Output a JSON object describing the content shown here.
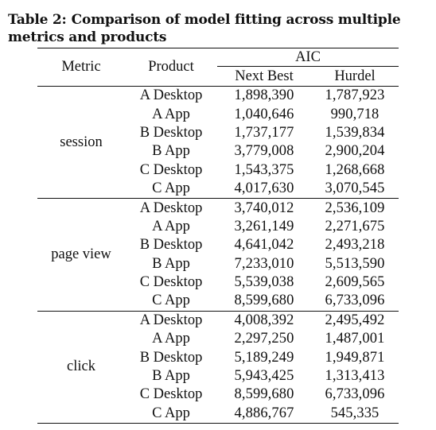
{
  "caption": {
    "label": "Table 2:",
    "text": "Comparison of model fitting across multiple metrics and products"
  },
  "table": {
    "headers": {
      "metric": "Metric",
      "product": "Product",
      "group": "AIC",
      "next_best": "Next Best",
      "hurdel": "Hurdel"
    },
    "groups": [
      {
        "metric": "session",
        "rows": [
          {
            "product": "A Desktop",
            "next_best": "1,898,390",
            "hurdel": "1,787,923"
          },
          {
            "product": "A App",
            "next_best": "1,040,646",
            "hurdel": "990,718"
          },
          {
            "product": "B Desktop",
            "next_best": "1,737,177",
            "hurdel": "1,539,834"
          },
          {
            "product": "B App",
            "next_best": "3,779,008",
            "hurdel": "2,900,204"
          },
          {
            "product": "C Desktop",
            "next_best": "1,543,375",
            "hurdel": "1,268,668"
          },
          {
            "product": "C App",
            "next_best": "4,017,630",
            "hurdel": "3,070,545"
          }
        ]
      },
      {
        "metric": "page view",
        "rows": [
          {
            "product": "A Desktop",
            "next_best": "3,740,012",
            "hurdel": "2,536,109"
          },
          {
            "product": "A App",
            "next_best": "3,261,149",
            "hurdel": "2,271,675"
          },
          {
            "product": "B Desktop",
            "next_best": "4,641,042",
            "hurdel": "2,493,218"
          },
          {
            "product": "B App",
            "next_best": "7,233,010",
            "hurdel": "5,513,590"
          },
          {
            "product": "C Desktop",
            "next_best": "5,539,038",
            "hurdel": "2,609,565"
          },
          {
            "product": "C App",
            "next_best": "8,599,680",
            "hurdel": "6,733,096"
          }
        ]
      },
      {
        "metric": "click",
        "rows": [
          {
            "product": "A Desktop",
            "next_best": "4,008,392",
            "hurdel": "2,495,492"
          },
          {
            "product": "A App",
            "next_best": "2,297,250",
            "hurdel": "1,487,001"
          },
          {
            "product": "B Desktop",
            "next_best": "5,189,249",
            "hurdel": "1,949,871"
          },
          {
            "product": "B App",
            "next_best": "5,943,425",
            "hurdel": "1,313,413"
          },
          {
            "product": "C Desktop",
            "next_best": "8,599,680",
            "hurdel": "6,733,096"
          },
          {
            "product": "C App",
            "next_best": "4,886,767",
            "hurdel": "545,335"
          }
        ]
      }
    ]
  }
}
